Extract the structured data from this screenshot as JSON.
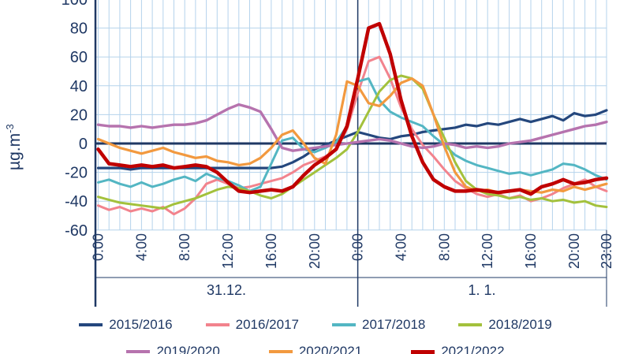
{
  "chart_data": {
    "type": "line",
    "title": "",
    "ylabel_base": "µg.m",
    "ylabel_sup": "-3",
    "ylim": [
      -60,
      100
    ],
    "ytick_step": 20,
    "yticks": [
      100,
      80,
      60,
      40,
      20,
      0,
      -20,
      -40,
      -60
    ],
    "n_points": 48,
    "grid": true,
    "grid_color": "#b5d3ec",
    "axis_color": "#1f3864",
    "xticks": [
      {
        "hour": 0,
        "label": "0:00"
      },
      {
        "hour": 4,
        "label": "4:00"
      },
      {
        "hour": 8,
        "label": "8:00"
      },
      {
        "hour": 12,
        "label": "12:00"
      },
      {
        "hour": 16,
        "label": "16:00"
      },
      {
        "hour": 20,
        "label": "20:00"
      },
      {
        "hour": 24,
        "label": "0:00"
      },
      {
        "hour": 28,
        "label": "4:00"
      },
      {
        "hour": 32,
        "label": "8:00"
      },
      {
        "hour": 36,
        "label": "12:00"
      },
      {
        "hour": 40,
        "label": "16:00"
      },
      {
        "hour": 44,
        "label": "20:00"
      },
      {
        "hour": 47,
        "label": "23:00"
      }
    ],
    "day_labels": [
      {
        "label": "31.12.",
        "start_hour": 0,
        "end_hour": 24
      },
      {
        "label": "1. 1.",
        "start_hour": 24,
        "end_hour": 47
      }
    ],
    "legend_position": "bottom",
    "series": [
      {
        "name": "2015/2016",
        "color": "#24477d",
        "width": 3.2,
        "values": [
          -17,
          -17,
          -17,
          -18,
          -17,
          -17,
          -17,
          -17,
          -17,
          -17,
          -17,
          -17,
          -17,
          -17,
          -17,
          -17,
          -17,
          -16,
          -13,
          -9,
          -4,
          -1,
          2,
          5,
          8,
          6,
          4,
          3,
          5,
          6,
          8,
          9,
          10,
          11,
          13,
          12,
          14,
          13,
          15,
          17,
          15,
          17,
          19,
          16,
          21,
          19,
          20,
          23
        ]
      },
      {
        "name": "2016/2017",
        "color": "#f2838d",
        "width": 3,
        "values": [
          -43,
          -46,
          -44,
          -47,
          -45,
          -47,
          -44,
          -49,
          -45,
          -38,
          -28,
          -25,
          -28,
          -31,
          -30,
          -28,
          -26,
          -24,
          -20,
          -15,
          -12,
          -9,
          -4,
          10,
          35,
          57,
          60,
          45,
          25,
          10,
          -1,
          -9,
          -18,
          -26,
          -31,
          -35,
          -37,
          -35,
          -38,
          -36,
          -40,
          -38,
          -35,
          -31,
          -28,
          -25,
          -30,
          -33
        ]
      },
      {
        "name": "2017/2018",
        "color": "#53b6c3",
        "width": 3,
        "values": [
          -27,
          -25,
          -28,
          -30,
          -27,
          -30,
          -28,
          -25,
          -23,
          -26,
          -21,
          -24,
          -26,
          -29,
          -33,
          -30,
          -14,
          2,
          4,
          -4,
          -6,
          -3,
          1,
          12,
          43,
          45,
          30,
          22,
          18,
          15,
          12,
          5,
          -1,
          -8,
          -12,
          -15,
          -17,
          -19,
          -21,
          -20,
          -22,
          -20,
          -18,
          -14,
          -15,
          -18,
          -22,
          -25
        ]
      },
      {
        "name": "2018/2019",
        "color": "#a3c13c",
        "width": 3,
        "values": [
          -37,
          -39,
          -41,
          -42,
          -43,
          -44,
          -45,
          -42,
          -40,
          -38,
          -35,
          -32,
          -30,
          -31,
          -33,
          -36,
          -38,
          -35,
          -30,
          -25,
          -20,
          -15,
          -10,
          -4,
          8,
          22,
          36,
          44,
          47,
          45,
          38,
          20,
          4,
          -13,
          -26,
          -32,
          -35,
          -36,
          -38,
          -37,
          -39,
          -38,
          -40,
          -39,
          -41,
          -40,
          -43,
          -44
        ]
      },
      {
        "name": "2019/2020",
        "color": "#b673ae",
        "width": 3.4,
        "values": [
          13,
          12,
          12,
          11,
          12,
          11,
          12,
          13,
          13,
          14,
          16,
          20,
          24,
          27,
          25,
          22,
          10,
          -3,
          -5,
          -4,
          -3,
          -2,
          -1,
          0,
          1,
          2,
          3,
          2,
          0,
          -2,
          -3,
          -2,
          0,
          -1,
          -3,
          -2,
          -3,
          -2,
          0,
          1,
          2,
          4,
          6,
          8,
          10,
          12,
          13,
          15
        ]
      },
      {
        "name": "2020/2021",
        "color": "#f2993f",
        "width": 3.2,
        "values": [
          3,
          0,
          -3,
          -5,
          -7,
          -5,
          -3,
          -6,
          -8,
          -10,
          -9,
          -12,
          -13,
          -15,
          -14,
          -10,
          -3,
          6,
          9,
          0,
          -10,
          -14,
          6,
          43,
          40,
          28,
          26,
          33,
          42,
          45,
          40,
          20,
          -2,
          -20,
          -30,
          -33,
          -32,
          -34,
          -33,
          -32,
          -33,
          -34,
          -32,
          -33,
          -30,
          -32,
          -30,
          -28
        ]
      },
      {
        "name": "2021/2022",
        "color": "#c00000",
        "width": 4.5,
        "values": [
          -4,
          -14,
          -15,
          -16,
          -15,
          -16,
          -15,
          -17,
          -16,
          -15,
          -16,
          -20,
          -27,
          -33,
          -34,
          -33,
          -32,
          -33,
          -30,
          -22,
          -15,
          -10,
          -4,
          12,
          45,
          80,
          83,
          62,
          30,
          5,
          -13,
          -25,
          -30,
          -33,
          -33,
          -32,
          -33,
          -34,
          -33,
          -32,
          -35,
          -30,
          -28,
          -25,
          -28,
          -27,
          -25,
          -24
        ]
      }
    ]
  }
}
